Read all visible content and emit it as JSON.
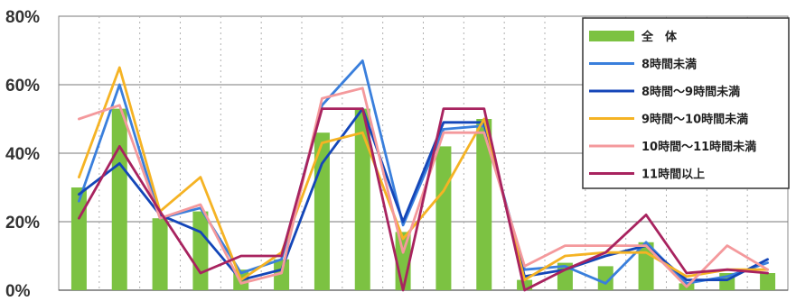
{
  "chart_data": {
    "type": "bar",
    "ylim": [
      0,
      80
    ],
    "y_ticks": [
      "0%",
      "20%",
      "40%",
      "60%",
      "80%"
    ],
    "y_tick_values": [
      0,
      20,
      40,
      60,
      80
    ],
    "grid": true,
    "legend_position": "top-right",
    "categories": [
      "",
      "",
      "",
      "",
      "",
      "",
      "",
      "",
      "",
      "",
      "",
      "",
      "",
      "",
      "",
      "",
      "",
      ""
    ],
    "bars": {
      "name": "全　体",
      "color": "#7cc242",
      "values": [
        30,
        53,
        21,
        23,
        6,
        9,
        46,
        53,
        17,
        42,
        50,
        3,
        8,
        7,
        14,
        2,
        5,
        5
      ]
    },
    "series": [
      {
        "name": "8時間未満",
        "color": "#3a7fdc",
        "values": [
          26,
          60,
          21,
          24,
          5,
          9,
          54,
          67,
          19,
          47,
          48,
          6,
          7,
          2,
          14,
          2,
          4,
          8
        ]
      },
      {
        "name": "8時間～9時間未満",
        "color": "#1446b8",
        "values": [
          28,
          37,
          22,
          17,
          3,
          6,
          37,
          53,
          20,
          49,
          49,
          4,
          6,
          10,
          13,
          3,
          3,
          9
        ]
      },
      {
        "name": "9時間～10時間未満",
        "color": "#f5b324",
        "values": [
          33,
          65,
          23,
          33,
          3,
          11,
          43,
          46,
          15,
          29,
          50,
          3,
          10,
          11,
          11,
          4,
          6,
          6
        ]
      },
      {
        "name": "10時間～11時間未満",
        "color": "#f4999c",
        "values": [
          50,
          54,
          21,
          25,
          2,
          5,
          56,
          59,
          11,
          46,
          46,
          7,
          13,
          13,
          13,
          1,
          13,
          6
        ]
      },
      {
        "name": "11時間以上",
        "color": "#a8235f",
        "values": [
          21,
          42,
          23,
          5,
          10,
          10,
          53,
          53,
          0,
          53,
          53,
          0,
          6,
          11,
          22,
          5,
          6,
          5
        ]
      }
    ]
  }
}
